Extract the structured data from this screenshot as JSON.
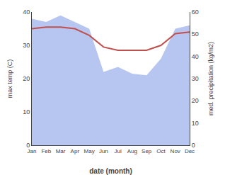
{
  "chart_data": {
    "type": "line",
    "categories": [
      "Jan",
      "Feb",
      "Mar",
      "Apr",
      "May",
      "Jun",
      "Jul",
      "Aug",
      "Sep",
      "Oct",
      "Nov",
      "Dec"
    ],
    "series": [
      {
        "type": "line",
        "color": "#c0504d",
        "values": [
          35,
          35.5,
          35.5,
          35,
          33,
          29.5,
          28.5,
          28.5,
          28.5,
          30,
          33.5,
          34
        ]
      },
      {
        "type": "area",
        "axis": "y2",
        "color": "#aabbee",
        "values": [
          57,
          55.5,
          58.5,
          55.5,
          52.5,
          33,
          35.25,
          32.25,
          31.5,
          39,
          52.5,
          54
        ]
      }
    ],
    "xlabel": "date (month)",
    "ylabel": "max temp (C)",
    "y2label": "med. precipitation (kg/m2)",
    "ylim": [
      0,
      40
    ],
    "yticks": [
      0,
      10,
      20,
      30,
      40
    ],
    "y2lim": [
      0,
      60
    ],
    "y2ticks": [
      0,
      10,
      20,
      30,
      40,
      50,
      60
    ],
    "grid": false
  }
}
